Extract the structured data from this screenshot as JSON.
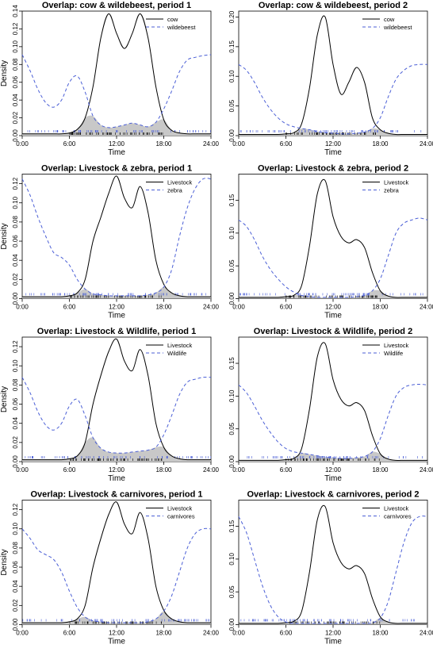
{
  "chart_data": [
    {
      "type": "line",
      "title": "Overlap: cow & wildebeest, period 1",
      "xlabel": "Time",
      "ylabel": "Density",
      "xlim": [
        0,
        24
      ],
      "ylim": [
        0,
        0.14
      ],
      "xticks": [
        "0:00",
        "6:00",
        "12:00",
        "18:00",
        "24:00"
      ],
      "yticks": [
        "0.00",
        "0.02",
        "0.04",
        "0.06",
        "0.08",
        "0.10",
        "0.12",
        "0.14"
      ],
      "legend_position": "top-right",
      "shaded_overlap": true,
      "x": [
        0,
        1,
        2,
        3,
        4,
        5,
        6,
        7,
        8,
        9,
        10,
        11,
        12,
        13,
        14,
        15,
        16,
        17,
        18,
        19,
        20,
        21,
        22,
        23,
        24
      ],
      "series": [
        {
          "name": "cow",
          "color": "#000000",
          "style": "solid",
          "values": [
            0.002,
            0.002,
            0.002,
            0.002,
            0.002,
            0.002,
            0.003,
            0.007,
            0.02,
            0.055,
            0.11,
            0.137,
            0.115,
            0.098,
            0.115,
            0.137,
            0.11,
            0.055,
            0.018,
            0.006,
            0.003,
            0.002,
            0.002,
            0.002,
            0.002
          ]
        },
        {
          "name": "wildebeest",
          "color": "#4b5fd6",
          "style": "dashed",
          "values": [
            0.091,
            0.073,
            0.052,
            0.037,
            0.032,
            0.04,
            0.06,
            0.067,
            0.049,
            0.022,
            0.012,
            0.009,
            0.01,
            0.012,
            0.014,
            0.012,
            0.01,
            0.015,
            0.03,
            0.05,
            0.072,
            0.085,
            0.088,
            0.09,
            0.091
          ]
        }
      ]
    },
    {
      "type": "line",
      "title": "Overlap: cow & wildebeest, period 2",
      "xlabel": "Time",
      "ylabel": "",
      "xlim": [
        0,
        24
      ],
      "ylim": [
        0,
        0.21
      ],
      "xticks": [
        "0:00",
        "6:00",
        "12:00",
        "18:00",
        "24:00"
      ],
      "yticks": [
        "0.00",
        "0.05",
        "0.10",
        "0.15",
        "0.20"
      ],
      "legend_position": "top-right",
      "shaded_overlap": true,
      "x": [
        0,
        1,
        2,
        3,
        4,
        5,
        6,
        7,
        8,
        9,
        10,
        11,
        12,
        13,
        14,
        15,
        16,
        17,
        18,
        19,
        20,
        21,
        22,
        23,
        24
      ],
      "series": [
        {
          "name": "cow",
          "color": "#000000",
          "style": "solid",
          "values": [
            0.002,
            0.002,
            0.002,
            0.002,
            0.002,
            0.002,
            0.003,
            0.005,
            0.02,
            0.08,
            0.17,
            0.2,
            0.12,
            0.07,
            0.09,
            0.115,
            0.09,
            0.03,
            0.01,
            0.004,
            0.002,
            0.002,
            0.002,
            0.002,
            0.002
          ]
        },
        {
          "name": "wildebeest",
          "color": "#4b5fd6",
          "style": "dashed",
          "values": [
            0.12,
            0.11,
            0.09,
            0.065,
            0.045,
            0.03,
            0.02,
            0.015,
            0.012,
            0.01,
            0.007,
            0.005,
            0.004,
            0.003,
            0.003,
            0.004,
            0.006,
            0.012,
            0.03,
            0.065,
            0.095,
            0.11,
            0.118,
            0.12,
            0.12
          ]
        }
      ]
    },
    {
      "type": "line",
      "title": "Overlap: Livestock & zebra, period 1",
      "xlabel": "Time",
      "ylabel": "Density",
      "xlim": [
        0,
        24
      ],
      "ylim": [
        0,
        0.13
      ],
      "xticks": [
        "0:00",
        "6:00",
        "12:00",
        "18:00",
        "24:00"
      ],
      "yticks": [
        "0.00",
        "0.02",
        "0.04",
        "0.06",
        "0.08",
        "0.10",
        "0.12"
      ],
      "legend_position": "top-right",
      "shaded_overlap": true,
      "x": [
        0,
        1,
        2,
        3,
        4,
        5,
        6,
        7,
        8,
        9,
        10,
        11,
        12,
        13,
        14,
        15,
        16,
        17,
        18,
        19,
        20,
        21,
        22,
        23,
        24
      ],
      "series": [
        {
          "name": "Livestock",
          "color": "#000000",
          "style": "solid",
          "values": [
            0.002,
            0.002,
            0.002,
            0.002,
            0.002,
            0.002,
            0.003,
            0.006,
            0.02,
            0.06,
            0.085,
            0.11,
            0.128,
            0.105,
            0.095,
            0.117,
            0.09,
            0.04,
            0.015,
            0.006,
            0.003,
            0.002,
            0.002,
            0.002,
            0.002
          ]
        },
        {
          "name": "zebra",
          "color": "#4b5fd6",
          "style": "dashed",
          "values": [
            0.125,
            0.108,
            0.085,
            0.065,
            0.048,
            0.043,
            0.035,
            0.02,
            0.01,
            0.005,
            0.004,
            0.003,
            0.003,
            0.003,
            0.003,
            0.003,
            0.004,
            0.006,
            0.012,
            0.03,
            0.065,
            0.095,
            0.115,
            0.125,
            0.125
          ]
        }
      ]
    },
    {
      "type": "line",
      "title": "Overlap: Livestock & zebra, period 2",
      "xlabel": "Time",
      "ylabel": "",
      "xlim": [
        0,
        24
      ],
      "ylim": [
        0,
        0.19
      ],
      "xticks": [
        "0:00",
        "6:00",
        "12:00",
        "18:00",
        "24:00"
      ],
      "yticks": [
        "0.00",
        "0.05",
        "0.10",
        "0.15"
      ],
      "legend_position": "top-right",
      "shaded_overlap": true,
      "x": [
        0,
        1,
        2,
        3,
        4,
        5,
        6,
        7,
        8,
        9,
        10,
        11,
        12,
        13,
        14,
        15,
        16,
        17,
        18,
        19,
        20,
        21,
        22,
        23,
        24
      ],
      "series": [
        {
          "name": "Livestock",
          "color": "#000000",
          "style": "solid",
          "values": [
            0.002,
            0.002,
            0.002,
            0.002,
            0.002,
            0.002,
            0.003,
            0.005,
            0.02,
            0.08,
            0.16,
            0.18,
            0.125,
            0.095,
            0.085,
            0.09,
            0.078,
            0.04,
            0.012,
            0.004,
            0.002,
            0.002,
            0.002,
            0.002,
            0.002
          ]
        },
        {
          "name": "zebra",
          "color": "#4b5fd6",
          "style": "dashed",
          "values": [
            0.12,
            0.11,
            0.09,
            0.065,
            0.045,
            0.03,
            0.018,
            0.01,
            0.005,
            0.003,
            0.002,
            0.002,
            0.002,
            0.002,
            0.002,
            0.003,
            0.005,
            0.012,
            0.03,
            0.065,
            0.1,
            0.115,
            0.12,
            0.123,
            0.12
          ]
        }
      ]
    },
    {
      "type": "line",
      "title": "Overlap: Livestock & Wildlife, period 1",
      "xlabel": "Time",
      "ylabel": "Density",
      "xlim": [
        0,
        24
      ],
      "ylim": [
        0,
        0.13
      ],
      "xticks": [
        "0:00",
        "6:00",
        "12:00",
        "18:00",
        "24:00"
      ],
      "yticks": [
        "0.00",
        "0.02",
        "0.04",
        "0.06",
        "0.08",
        "0.10",
        "0.12"
      ],
      "legend_position": "top-right",
      "shaded_overlap": true,
      "x": [
        0,
        1,
        2,
        3,
        4,
        5,
        6,
        7,
        8,
        9,
        10,
        11,
        12,
        13,
        14,
        15,
        16,
        17,
        18,
        19,
        20,
        21,
        22,
        23,
        24
      ],
      "series": [
        {
          "name": "Livestock",
          "color": "#000000",
          "style": "solid",
          "values": [
            0.002,
            0.002,
            0.002,
            0.002,
            0.002,
            0.002,
            0.003,
            0.006,
            0.02,
            0.06,
            0.09,
            0.115,
            0.128,
            0.105,
            0.095,
            0.117,
            0.09,
            0.04,
            0.015,
            0.006,
            0.003,
            0.002,
            0.002,
            0.002,
            0.002
          ]
        },
        {
          "name": "Wildlife",
          "color": "#4b5fd6",
          "style": "dashed",
          "values": [
            0.088,
            0.072,
            0.052,
            0.038,
            0.033,
            0.04,
            0.058,
            0.065,
            0.048,
            0.025,
            0.014,
            0.01,
            0.009,
            0.009,
            0.01,
            0.011,
            0.012,
            0.015,
            0.028,
            0.048,
            0.07,
            0.083,
            0.086,
            0.088,
            0.088
          ]
        }
      ]
    },
    {
      "type": "line",
      "title": "Overlap: Livestock & Wildlife, period 2",
      "xlabel": "Time",
      "ylabel": "",
      "xlim": [
        0,
        24
      ],
      "ylim": [
        0,
        0.19
      ],
      "xticks": [
        "0:00",
        "6:00",
        "12:00",
        "18:00",
        "24:00"
      ],
      "yticks": [
        "0.00",
        "0.05",
        "0.10",
        "0.15"
      ],
      "legend_position": "top-right",
      "shaded_overlap": true,
      "x": [
        0,
        1,
        2,
        3,
        4,
        5,
        6,
        7,
        8,
        9,
        10,
        11,
        12,
        13,
        14,
        15,
        16,
        17,
        18,
        19,
        20,
        21,
        22,
        23,
        24
      ],
      "series": [
        {
          "name": "Livestock",
          "color": "#000000",
          "style": "solid",
          "values": [
            0.002,
            0.002,
            0.002,
            0.002,
            0.002,
            0.002,
            0.003,
            0.005,
            0.02,
            0.08,
            0.16,
            0.18,
            0.125,
            0.095,
            0.085,
            0.09,
            0.078,
            0.04,
            0.012,
            0.004,
            0.002,
            0.002,
            0.002,
            0.002,
            0.002
          ]
        },
        {
          "name": "Wildlife",
          "color": "#4b5fd6",
          "style": "dashed",
          "values": [
            0.117,
            0.105,
            0.085,
            0.063,
            0.045,
            0.03,
            0.02,
            0.015,
            0.013,
            0.011,
            0.009,
            0.007,
            0.006,
            0.005,
            0.005,
            0.006,
            0.008,
            0.015,
            0.035,
            0.07,
            0.1,
            0.113,
            0.117,
            0.118,
            0.117
          ]
        }
      ]
    },
    {
      "type": "line",
      "title": "Overlap: Livestock & carnivores, period 1",
      "xlabel": "Time",
      "ylabel": "Density",
      "xlim": [
        0,
        24
      ],
      "ylim": [
        0,
        0.13
      ],
      "xticks": [
        "0:00",
        "6:00",
        "12:00",
        "18:00",
        "24:00"
      ],
      "yticks": [
        "0.00",
        "0.02",
        "0.04",
        "0.06",
        "0.08",
        "0.10",
        "0.12"
      ],
      "legend_position": "top-right",
      "shaded_overlap": true,
      "x": [
        0,
        1,
        2,
        3,
        4,
        5,
        6,
        7,
        8,
        9,
        10,
        11,
        12,
        13,
        14,
        15,
        16,
        17,
        18,
        19,
        20,
        21,
        22,
        23,
        24
      ],
      "series": [
        {
          "name": "Livestock",
          "color": "#000000",
          "style": "solid",
          "values": [
            0.002,
            0.002,
            0.002,
            0.002,
            0.002,
            0.002,
            0.003,
            0.006,
            0.02,
            0.06,
            0.09,
            0.115,
            0.128,
            0.105,
            0.095,
            0.117,
            0.09,
            0.04,
            0.015,
            0.006,
            0.003,
            0.002,
            0.002,
            0.002,
            0.002
          ]
        },
        {
          "name": "carnivores",
          "color": "#4b5fd6",
          "style": "dashed",
          "values": [
            0.1,
            0.09,
            0.078,
            0.073,
            0.068,
            0.055,
            0.035,
            0.018,
            0.008,
            0.004,
            0.003,
            0.002,
            0.002,
            0.002,
            0.002,
            0.002,
            0.003,
            0.006,
            0.014,
            0.03,
            0.055,
            0.08,
            0.095,
            0.1,
            0.1
          ]
        }
      ]
    },
    {
      "type": "line",
      "title": "Overlap: Livestock & carnivores, period 2",
      "xlabel": "Time",
      "ylabel": "",
      "xlim": [
        0,
        24
      ],
      "ylim": [
        0,
        0.19
      ],
      "xticks": [
        "0:00",
        "6:00",
        "12:00",
        "18:00",
        "24:00"
      ],
      "yticks": [
        "0.00",
        "0.05",
        "0.10",
        "0.15"
      ],
      "legend_position": "top-right",
      "shaded_overlap": true,
      "x": [
        0,
        1,
        2,
        3,
        4,
        5,
        6,
        7,
        8,
        9,
        10,
        11,
        12,
        13,
        14,
        15,
        16,
        17,
        18,
        19,
        20,
        21,
        22,
        23,
        24
      ],
      "series": [
        {
          "name": "Livestock",
          "color": "#000000",
          "style": "solid",
          "values": [
            0.002,
            0.002,
            0.002,
            0.002,
            0.002,
            0.002,
            0.003,
            0.005,
            0.02,
            0.08,
            0.16,
            0.18,
            0.125,
            0.095,
            0.085,
            0.09,
            0.078,
            0.04,
            0.012,
            0.004,
            0.002,
            0.002,
            0.002,
            0.002,
            0.002
          ]
        },
        {
          "name": "carnivores",
          "color": "#4b5fd6",
          "style": "dashed",
          "values": [
            0.165,
            0.14,
            0.1,
            0.06,
            0.03,
            0.012,
            0.004,
            0.002,
            0.002,
            0.002,
            0.002,
            0.002,
            0.002,
            0.002,
            0.002,
            0.002,
            0.002,
            0.003,
            0.01,
            0.035,
            0.08,
            0.125,
            0.155,
            0.165,
            0.165
          ]
        }
      ]
    }
  ]
}
